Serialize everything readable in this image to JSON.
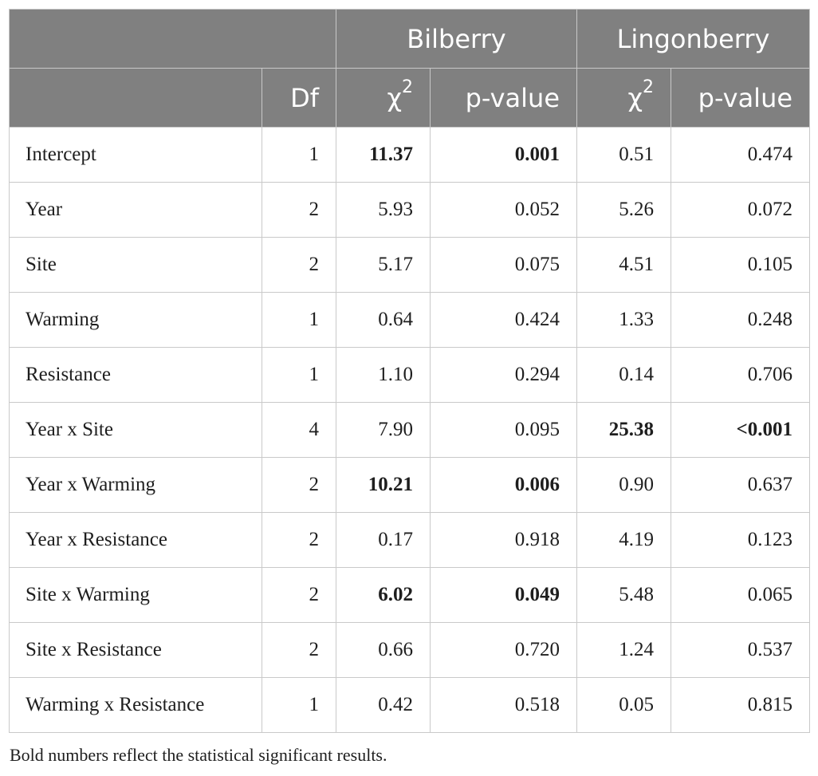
{
  "table": {
    "header_groups": [
      "Bilberry",
      "Lingonberry"
    ],
    "columns": {
      "df": "Df",
      "chi_symbol": "χ",
      "chi_exp": "2",
      "pvalue": "p-value"
    },
    "rows": [
      {
        "term": "Intercept",
        "df": "1",
        "bil_chi": "11.37",
        "bil_p": "0.001",
        "lin_chi": "0.51",
        "lin_p": "0.474",
        "bil_sig": true,
        "lin_sig": false
      },
      {
        "term": "Year",
        "df": "2",
        "bil_chi": "5.93",
        "bil_p": "0.052",
        "lin_chi": "5.26",
        "lin_p": "0.072",
        "bil_sig": false,
        "lin_sig": false
      },
      {
        "term": "Site",
        "df": "2",
        "bil_chi": "5.17",
        "bil_p": "0.075",
        "lin_chi": "4.51",
        "lin_p": "0.105",
        "bil_sig": false,
        "lin_sig": false
      },
      {
        "term": "Warming",
        "df": "1",
        "bil_chi": "0.64",
        "bil_p": "0.424",
        "lin_chi": "1.33",
        "lin_p": "0.248",
        "bil_sig": false,
        "lin_sig": false
      },
      {
        "term": "Resistance",
        "df": "1",
        "bil_chi": "1.10",
        "bil_p": "0.294",
        "lin_chi": "0.14",
        "lin_p": "0.706",
        "bil_sig": false,
        "lin_sig": false
      },
      {
        "term": "Year x Site",
        "df": "4",
        "bil_chi": "7.90",
        "bil_p": "0.095",
        "lin_chi": "25.38",
        "lin_p": "<0.001",
        "bil_sig": false,
        "lin_sig": true
      },
      {
        "term": "Year x Warming",
        "df": "2",
        "bil_chi": "10.21",
        "bil_p": "0.006",
        "lin_chi": "0.90",
        "lin_p": "0.637",
        "bil_sig": true,
        "lin_sig": false
      },
      {
        "term": "Year x Resistance",
        "df": "2",
        "bil_chi": "0.17",
        "bil_p": "0.918",
        "lin_chi": "4.19",
        "lin_p": "0.123",
        "bil_sig": false,
        "lin_sig": false
      },
      {
        "term": "Site x Warming",
        "df": "2",
        "bil_chi": "6.02",
        "bil_p": "0.049",
        "lin_chi": "5.48",
        "lin_p": "0.065",
        "bil_sig": true,
        "lin_sig": false
      },
      {
        "term": "Site x Resistance",
        "df": "2",
        "bil_chi": "0.66",
        "bil_p": "0.720",
        "lin_chi": "1.24",
        "lin_p": "0.537",
        "bil_sig": false,
        "lin_sig": false
      },
      {
        "term": "Warming x Resistance",
        "df": "1",
        "bil_chi": "0.42",
        "bil_p": "0.518",
        "lin_chi": "0.05",
        "lin_p": "0.815",
        "bil_sig": false,
        "lin_sig": false
      }
    ],
    "footnote": "Bold numbers reflect the statistical significant results.",
    "colors": {
      "header_bg": "#808080",
      "header_text": "#ffffff",
      "border": "#c9c9c9"
    }
  }
}
